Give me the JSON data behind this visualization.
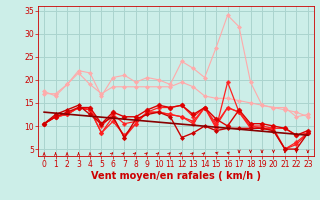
{
  "xlabel": "Vent moyen/en rafales ( km/h )",
  "background_color": "#cceee8",
  "grid_color": "#aad4ce",
  "x": [
    0,
    1,
    2,
    3,
    4,
    5,
    6,
    7,
    8,
    9,
    10,
    11,
    12,
    13,
    14,
    15,
    16,
    17,
    18,
    19,
    20,
    21,
    22,
    23
  ],
  "series": [
    {
      "y": [
        17.5,
        16.5,
        19.0,
        22.0,
        21.5,
        16.5,
        20.5,
        21.0,
        19.5,
        20.5,
        20.0,
        19.0,
        24.0,
        22.5,
        20.5,
        27.0,
        34.0,
        31.5,
        19.5,
        14.5,
        14.0,
        14.0,
        12.0,
        12.5
      ],
      "color": "#ffaaaa",
      "lw": 0.8,
      "marker": "D",
      "ms": 2.0,
      "zorder": 2
    },
    {
      "y": [
        17.0,
        17.0,
        19.0,
        21.5,
        19.0,
        17.0,
        18.5,
        18.5,
        18.5,
        18.5,
        18.5,
        18.5,
        19.5,
        18.5,
        16.5,
        16.0,
        16.0,
        15.5,
        15.0,
        14.5,
        14.0,
        13.5,
        13.0,
        12.0
      ],
      "color": "#ffaaaa",
      "lw": 0.8,
      "marker": "D",
      "ms": 2.0,
      "zorder": 2
    },
    {
      "y": [
        10.5,
        12.0,
        12.5,
        14.0,
        13.5,
        8.5,
        12.0,
        7.5,
        10.5,
        13.0,
        13.0,
        12.5,
        12.0,
        10.5,
        14.0,
        9.5,
        19.5,
        13.0,
        9.5,
        9.5,
        9.5,
        5.0,
        6.5,
        8.5
      ],
      "color": "#ff2020",
      "lw": 0.9,
      "marker": "P",
      "ms": 2.5,
      "zorder": 3
    },
    {
      "y": [
        10.5,
        12.0,
        12.5,
        14.0,
        13.5,
        8.5,
        11.0,
        8.0,
        10.5,
        13.0,
        13.0,
        12.5,
        12.0,
        11.0,
        14.0,
        10.0,
        14.0,
        13.0,
        10.0,
        9.5,
        9.0,
        5.0,
        6.0,
        8.5
      ],
      "color": "#ff2020",
      "lw": 0.9,
      "marker": "P",
      "ms": 2.5,
      "zorder": 3
    },
    {
      "y": [
        10.5,
        12.0,
        12.5,
        14.0,
        13.5,
        10.0,
        12.5,
        10.5,
        11.0,
        13.0,
        14.0,
        14.0,
        14.5,
        12.0,
        14.0,
        10.5,
        14.0,
        13.0,
        10.0,
        10.0,
        9.5,
        9.5,
        8.0,
        8.5
      ],
      "color": "#ff2020",
      "lw": 0.9,
      "marker": "P",
      "ms": 2.5,
      "zorder": 3
    },
    {
      "y": [
        10.5,
        12.0,
        13.0,
        14.0,
        14.0,
        10.5,
        13.0,
        12.0,
        12.0,
        13.5,
        14.5,
        14.0,
        14.5,
        12.5,
        14.0,
        11.5,
        10.0,
        13.5,
        10.5,
        10.5,
        10.0,
        9.5,
        8.0,
        9.0
      ],
      "color": "#dd0000",
      "lw": 1.0,
      "marker": "D",
      "ms": 2.5,
      "zorder": 4
    },
    {
      "y": [
        10.5,
        12.5,
        13.5,
        14.5,
        12.5,
        10.5,
        12.0,
        7.5,
        11.5,
        12.5,
        13.0,
        12.0,
        7.5,
        8.5,
        10.0,
        9.0,
        9.5,
        9.5,
        9.5,
        9.5,
        9.0,
        5.0,
        5.0,
        8.5
      ],
      "color": "#cc0000",
      "lw": 1.0,
      "marker": "D",
      "ms": 2.0,
      "zorder": 4
    }
  ],
  "trend_line": {
    "x_start": 0,
    "x_end": 23,
    "y_start": 13.0,
    "y_end": 8.0,
    "color": "#880000",
    "lw": 1.2,
    "zorder": 5
  },
  "wind_arrows": {
    "y": 4.2,
    "color": "#cc0000",
    "angles_deg": [
      90,
      90,
      90,
      90,
      90,
      75,
      75,
      75,
      75,
      75,
      75,
      75,
      75,
      75,
      75,
      135,
      135,
      270,
      270,
      270,
      270,
      270,
      270,
      270
    ]
  },
  "ylim": [
    3.5,
    36
  ],
  "yticks": [
    5,
    10,
    15,
    20,
    25,
    30,
    35
  ],
  "xlim": [
    -0.5,
    23.5
  ],
  "xticks": [
    0,
    1,
    2,
    3,
    4,
    5,
    6,
    7,
    8,
    9,
    10,
    11,
    12,
    13,
    14,
    15,
    16,
    17,
    18,
    19,
    20,
    21,
    22,
    23
  ],
  "tick_color": "#cc0000",
  "tick_fontsize": 5.5,
  "label_fontsize": 7.0
}
